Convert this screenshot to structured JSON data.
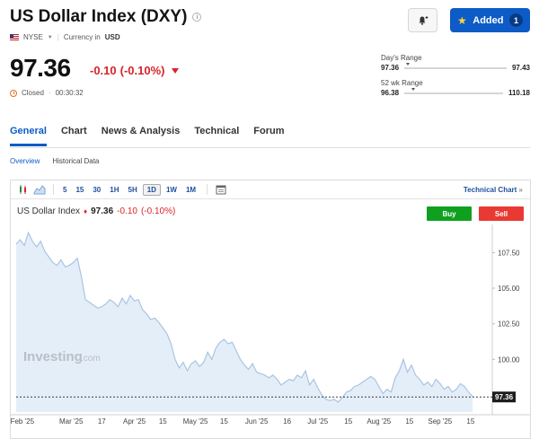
{
  "header": {
    "title": "US Dollar Index (DXY)",
    "added_label": "Added",
    "added_count": "1"
  },
  "meta": {
    "exchange": "NYSE",
    "currency_label": "Currency in",
    "currency": "USD"
  },
  "quote": {
    "price": "97.36",
    "change": "-0.10",
    "change_pct": "(-0.10%)",
    "status": "Closed",
    "timer": "00:30:32"
  },
  "day_range": {
    "label": "Day's Range",
    "low": "97.36",
    "high": "97.43",
    "position": 0.02
  },
  "wk52_range": {
    "label": "52 wk Range",
    "low": "96.38",
    "high": "110.18",
    "position": 0.07
  },
  "tabs": [
    "General",
    "Chart",
    "News & Analysis",
    "Technical",
    "Forum"
  ],
  "subtabs": [
    "Overview",
    "Historical Data"
  ],
  "toolbar": {
    "intervals": [
      "5",
      "15",
      "30",
      "1H",
      "5H",
      "1D",
      "1W",
      "1M"
    ],
    "active_interval": "1D",
    "technical_chart": "Technical Chart"
  },
  "chart_head": {
    "name": "US Dollar Index",
    "price": "97.36",
    "change": "-0.10",
    "change_pct": "(-0.10%)"
  },
  "trade": {
    "buy": "Buy",
    "sell": "Sell"
  },
  "watermark": "Investing",
  "watermark_suffix": ".com",
  "chart_data": {
    "type": "area",
    "title": "US Dollar Index",
    "y_ticks": [
      "107.50",
      "105.00",
      "102.50",
      "100.00"
    ],
    "y_tick_values": [
      107.5,
      105,
      102.5,
      100
    ],
    "ylim": [
      96.3,
      109.1
    ],
    "x_ticks": [
      "Feb '25",
      "Mar '25",
      "17",
      "Apr '25",
      "15",
      "May '25",
      "15",
      "Jun '25",
      "16",
      "Jul '25",
      "15",
      "Aug '25",
      "15",
      "Sep '25",
      "15"
    ],
    "x_tick_positions": [
      3,
      27,
      42,
      58,
      72,
      88,
      102,
      118,
      133,
      148,
      163,
      178,
      193,
      208,
      223
    ],
    "x_range": [
      0,
      231
    ],
    "last_value": 97.36,
    "last_value_label": "97.36",
    "series": [
      {
        "x": [
          0,
          2,
          4,
          6,
          8,
          10,
          12,
          14,
          16,
          18,
          20,
          22,
          24,
          26,
          28,
          30,
          32,
          34,
          36,
          38,
          40,
          42,
          44,
          46,
          48,
          50,
          52,
          54,
          56,
          58,
          60,
          62,
          64,
          66,
          68,
          70,
          72,
          74,
          76,
          78,
          80,
          82,
          84,
          86,
          88,
          90,
          92,
          94,
          96,
          98,
          100,
          102,
          104,
          106,
          108,
          110,
          112,
          114,
          116,
          118,
          120,
          122,
          124,
          126,
          128,
          130,
          132,
          134,
          136,
          138,
          140,
          142,
          144,
          146,
          148,
          150,
          152,
          154,
          156,
          158,
          160,
          162,
          164,
          166,
          168,
          170,
          172,
          174,
          176,
          178,
          180,
          182,
          184,
          186,
          188,
          190,
          192,
          194,
          196,
          198,
          200,
          202,
          204,
          206,
          208,
          210,
          212,
          214,
          216,
          218,
          220,
          222,
          224
        ],
        "values": [
          108.1,
          108.4,
          108.0,
          108.9,
          108.3,
          107.9,
          108.3,
          107.6,
          107.2,
          106.8,
          106.6,
          107.0,
          106.5,
          106.6,
          106.8,
          107.1,
          105.8,
          104.2,
          104.0,
          103.8,
          103.6,
          103.7,
          103.9,
          104.2,
          104.0,
          103.7,
          104.3,
          103.9,
          104.5,
          104.1,
          104.2,
          103.5,
          103.2,
          102.8,
          102.9,
          102.6,
          102.2,
          101.8,
          101.1,
          100.0,
          99.4,
          99.8,
          99.2,
          99.7,
          99.9,
          99.5,
          99.8,
          100.5,
          100.0,
          100.8,
          101.2,
          101.4,
          101.1,
          101.2,
          100.6,
          100.0,
          99.6,
          99.3,
          99.7,
          99.1,
          99.0,
          98.9,
          98.7,
          98.9,
          98.6,
          98.2,
          98.4,
          98.6,
          98.5,
          98.9,
          98.7,
          99.2,
          98.2,
          98.6,
          98.0,
          97.5,
          97.2,
          97.1,
          97.2,
          97.0,
          97.3,
          97.7,
          97.8,
          98.1,
          98.2,
          98.4,
          98.6,
          98.8,
          98.6,
          98.1,
          97.6,
          97.9,
          97.7,
          98.7,
          99.2,
          100.0,
          99.1,
          99.6,
          98.9,
          98.6,
          98.2,
          98.4,
          98.1,
          98.6,
          98.3,
          97.9,
          98.1,
          97.7,
          97.9,
          98.3,
          98.1,
          97.7,
          97.4
        ]
      }
    ]
  },
  "colors": {
    "accent": "#0d5bc6",
    "negative": "#d8232a",
    "buy": "#10a020",
    "sell": "#e83a33",
    "area_fill": "#e4eef8",
    "area_line": "#a9c4e3"
  }
}
